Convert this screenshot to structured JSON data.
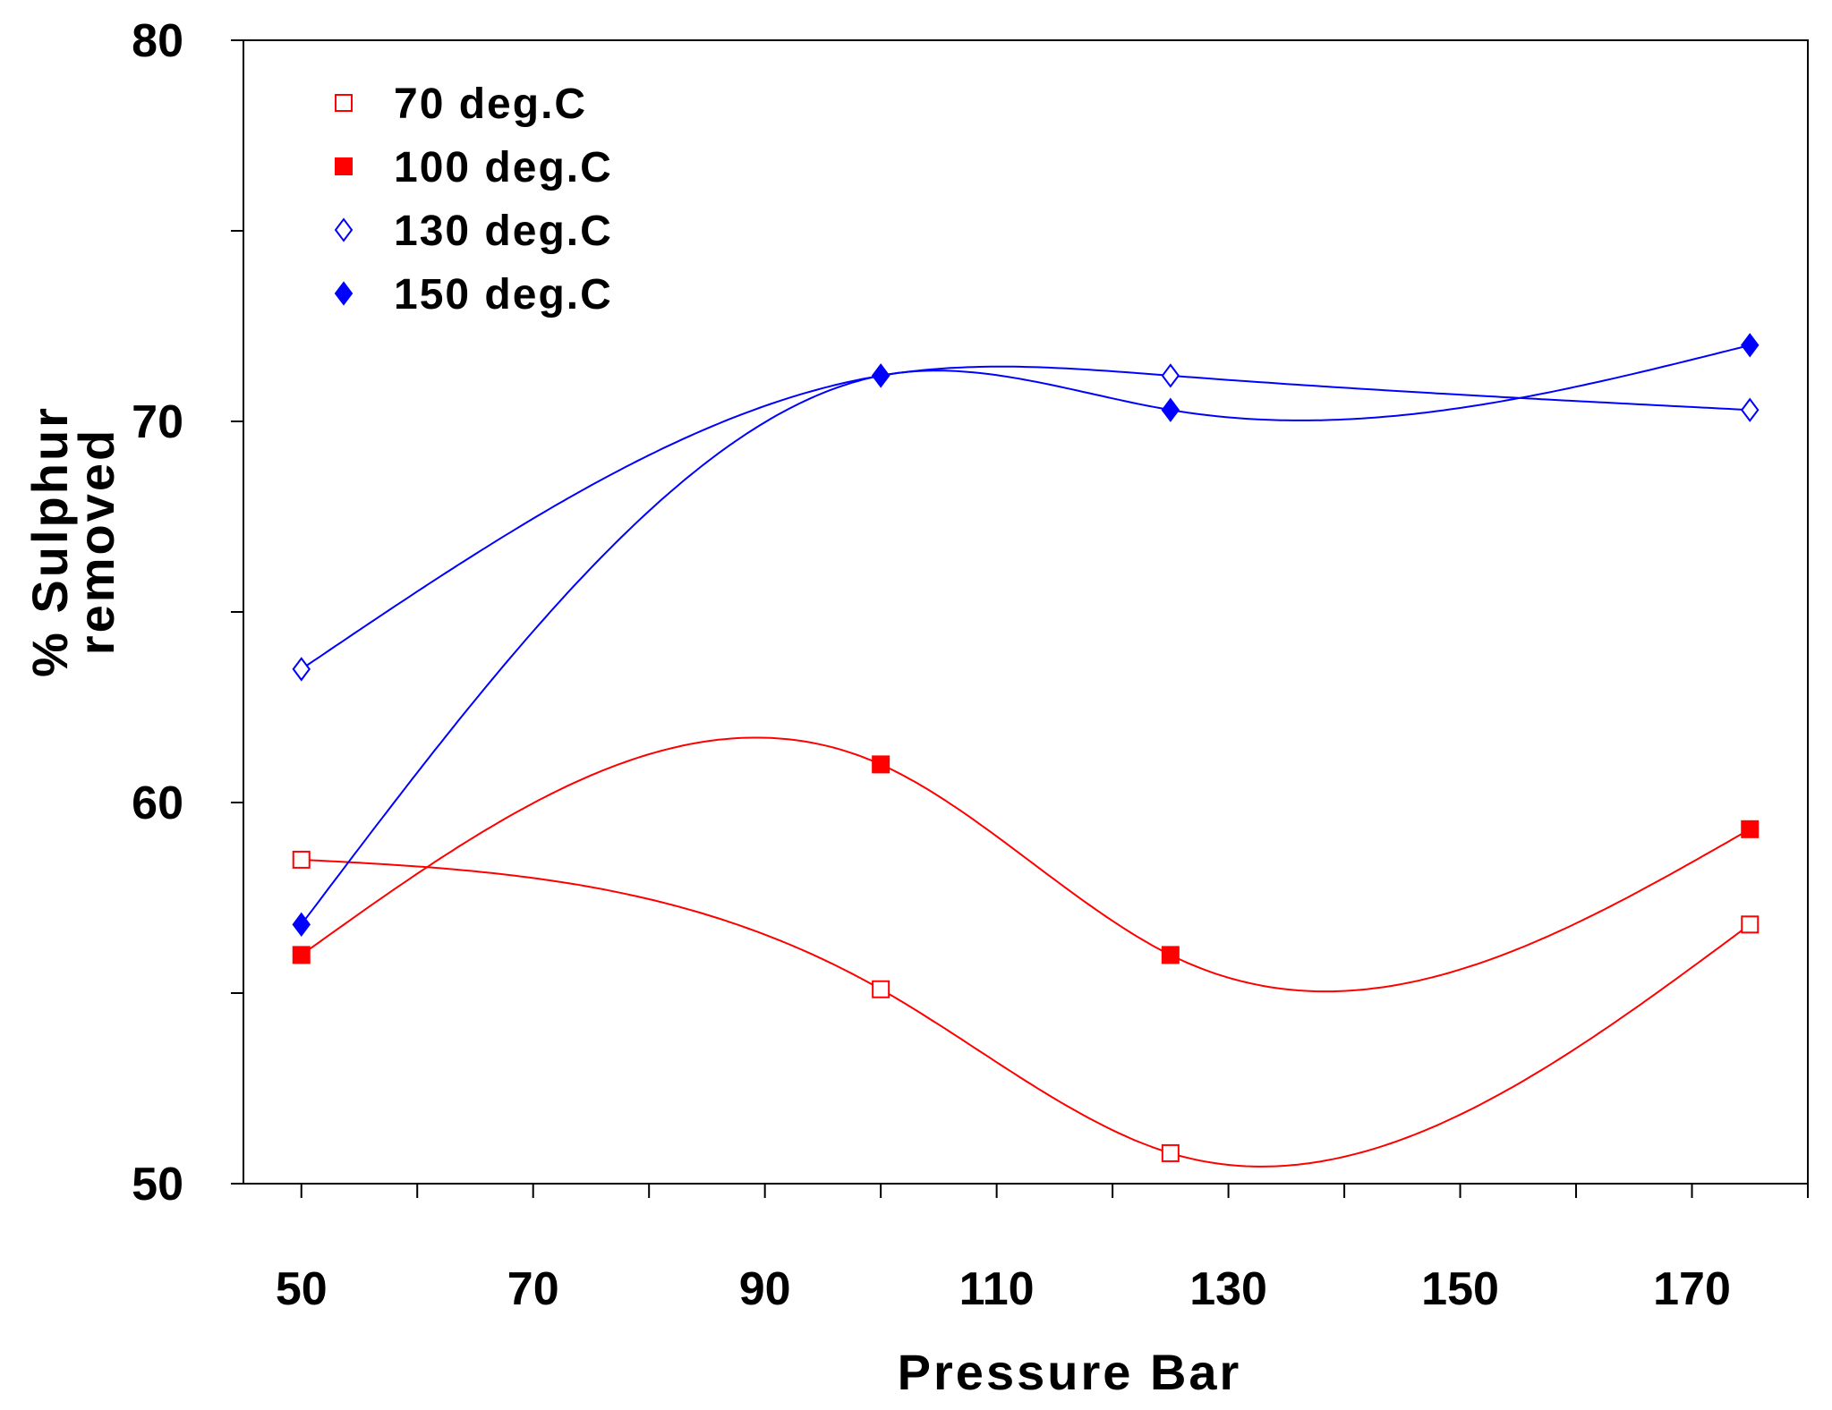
{
  "chart_data": {
    "type": "line",
    "title": "",
    "xlabel": "Pressure Bar",
    "ylabel_lines": [
      "% Sulphur",
      "removed"
    ],
    "xlim": [
      45,
      180
    ],
    "ylim": [
      50,
      80
    ],
    "xticks": [
      50,
      60,
      70,
      80,
      90,
      100,
      110,
      120,
      130,
      140,
      150,
      160,
      170,
      180
    ],
    "xtick_labels": [
      "50",
      "70",
      "90",
      "110",
      "130",
      "150",
      "170"
    ],
    "xtick_label_values": [
      50,
      70,
      90,
      110,
      130,
      150,
      170
    ],
    "yticks": [
      50,
      55,
      60,
      65,
      70,
      75,
      80
    ],
    "ytick_labels": [
      "50",
      "60",
      "70",
      "80"
    ],
    "ytick_label_values": [
      50,
      60,
      70,
      80
    ],
    "legend_position": "top-left",
    "series": [
      {
        "name": "70 deg.C",
        "color": "#ff0000",
        "marker": "square-open",
        "x": [
          50,
          100,
          125,
          175
        ],
        "y": [
          58.5,
          55.1,
          50.8,
          56.8
        ]
      },
      {
        "name": "100 deg.C",
        "color": "#ff0000",
        "marker": "square-filled",
        "x": [
          50,
          100,
          125,
          175
        ],
        "y": [
          56.0,
          61.0,
          56.0,
          59.3
        ]
      },
      {
        "name": "130 deg.C",
        "color": "#0000ff",
        "marker": "diamond-open",
        "x": [
          50,
          100,
          125,
          175
        ],
        "y": [
          63.5,
          71.2,
          71.2,
          70.3
        ]
      },
      {
        "name": "150 deg.C",
        "color": "#0000ff",
        "marker": "diamond-filled",
        "x": [
          50,
          100,
          125,
          175
        ],
        "y": [
          56.8,
          71.2,
          70.3,
          72.0
        ]
      }
    ]
  }
}
